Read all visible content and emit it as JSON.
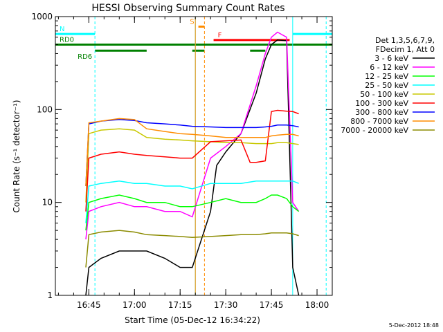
{
  "chart_data": {
    "type": "line",
    "title": "HESSI Observing Summary Count Rates",
    "xlabel": "Start Time (05-Dec-12 16:34:22)",
    "ylabel": "Count Rate (s⁻¹ detector⁻¹)",
    "yscale": "log",
    "xlim": [
      "16:34",
      "18:05"
    ],
    "ylim": [
      1,
      1000
    ],
    "xticks": [
      "16:45",
      "17:00",
      "17:15",
      "17:30",
      "17:45",
      "18:00"
    ],
    "yticks": [
      {
        "value": 1,
        "label": "1"
      },
      {
        "value": 10,
        "label": "10"
      },
      {
        "value": 100,
        "label": "100"
      },
      {
        "value": 1000,
        "label": "1000"
      }
    ],
    "legend_placement": "right",
    "legend_header": [
      "Det 1,3,5,6,7,9,",
      "FDecim 1, Att 0"
    ],
    "timestamp": "5-Dec-2012 18:48",
    "flags": [
      {
        "label": "N",
        "color": "#00ffff",
        "y": 650,
        "segments": [
          [
            "16:34",
            "16:47"
          ],
          [
            "17:52",
            "18:05"
          ]
        ]
      },
      {
        "label": "S",
        "color": "#ff8c00",
        "y": 780,
        "segments": [
          [
            "17:21",
            "17:23"
          ]
        ]
      },
      {
        "label": "F",
        "color": "#ff0000",
        "y": 560,
        "segments": [
          [
            "17:26",
            "17:51"
          ]
        ]
      },
      {
        "label": "RD0",
        "color": "#008000",
        "y": 500,
        "segments": [
          [
            "16:34",
            "18:05"
          ]
        ]
      },
      {
        "label": "RD6",
        "color": "#008000",
        "y": 430,
        "segments": [
          [
            "16:47",
            "17:04"
          ],
          [
            "17:19",
            "17:23"
          ],
          [
            "17:38",
            "17:43"
          ]
        ]
      }
    ],
    "vlines": [
      {
        "t": "16:34",
        "color": "#00ffff",
        "dash": false
      },
      {
        "t": "16:47",
        "color": "#00ffff",
        "dash": true
      },
      {
        "t": "17:20",
        "color": "#00ffff",
        "dash": false
      },
      {
        "t": "17:20",
        "color": "#ff8c00",
        "dash": false
      },
      {
        "t": "17:23",
        "color": "#ff8c00",
        "dash": true
      },
      {
        "t": "17:52",
        "color": "#00ffff",
        "dash": false
      },
      {
        "t": "18:03",
        "color": "#00ffff",
        "dash": true
      }
    ],
    "series": [
      {
        "name": "3 - 6 keV",
        "color": "#000000",
        "x": [
          "16:44",
          "16:45",
          "16:49",
          "16:55",
          "17:00",
          "17:04",
          "17:10",
          "17:15",
          "17:19",
          "17:25",
          "17:27",
          "17:30",
          "17:35",
          "17:40",
          "17:43",
          "17:45",
          "17:47",
          "17:50",
          "17:52",
          "17:54"
        ],
        "y": [
          1,
          2,
          2.5,
          3,
          3,
          3,
          2.5,
          2,
          2,
          8,
          25,
          35,
          55,
          150,
          350,
          500,
          560,
          550,
          2,
          1
        ]
      },
      {
        "name": "6 - 12 keV",
        "color": "#ff00ff",
        "x": [
          "16:44",
          "16:45",
          "16:49",
          "16:55",
          "17:00",
          "17:04",
          "17:10",
          "17:15",
          "17:19",
          "17:25",
          "17:30",
          "17:35",
          "17:40",
          "17:43",
          "17:45",
          "17:47",
          "17:50",
          "17:52",
          "17:54"
        ],
        "y": [
          4,
          8,
          9,
          10,
          9,
          9,
          8,
          8,
          7,
          30,
          40,
          55,
          180,
          400,
          600,
          680,
          600,
          10,
          8
        ]
      },
      {
        "name": "12 - 25 keV",
        "color": "#00ff00",
        "x": [
          "16:44",
          "16:45",
          "16:49",
          "16:55",
          "17:00",
          "17:04",
          "17:10",
          "17:15",
          "17:19",
          "17:25",
          "17:30",
          "17:35",
          "17:40",
          "17:43",
          "17:45",
          "17:47",
          "17:50",
          "17:52",
          "17:54"
        ],
        "y": [
          5,
          10,
          11,
          12,
          11,
          10,
          10,
          9,
          9,
          10,
          11,
          10,
          10,
          11,
          12,
          12,
          11,
          9,
          8
        ]
      },
      {
        "name": "25 - 50 keV",
        "color": "#00ffff",
        "x": [
          "16:44",
          "16:45",
          "16:49",
          "16:55",
          "17:00",
          "17:04",
          "17:10",
          "17:15",
          "17:19",
          "17:25",
          "17:30",
          "17:35",
          "17:40",
          "17:43",
          "17:45",
          "17:47",
          "17:50",
          "17:52",
          "17:54"
        ],
        "y": [
          6,
          15,
          16,
          17,
          16,
          16,
          15,
          15,
          14,
          16,
          16,
          16,
          17,
          17,
          17,
          17,
          17,
          17,
          16
        ]
      },
      {
        "name": "50 - 100 keV",
        "color": "#c8c800",
        "x": [
          "16:44",
          "16:45",
          "16:49",
          "16:55",
          "17:00",
          "17:04",
          "17:10",
          "17:15",
          "17:19",
          "17:25",
          "17:30",
          "17:35",
          "17:40",
          "17:43",
          "17:45",
          "17:47",
          "17:50",
          "17:52",
          "17:54"
        ],
        "y": [
          10,
          55,
          60,
          62,
          60,
          50,
          48,
          47,
          46,
          45,
          44,
          44,
          43,
          43,
          43,
          44,
          44,
          43,
          42
        ]
      },
      {
        "name": "100 - 300 keV",
        "color": "#ff0000",
        "x": [
          "16:44",
          "16:45",
          "16:49",
          "16:55",
          "17:00",
          "17:04",
          "17:10",
          "17:15",
          "17:19",
          "17:25",
          "17:30",
          "17:35",
          "17:38",
          "17:40",
          "17:43",
          "17:45",
          "17:47",
          "17:50",
          "17:52",
          "17:54"
        ],
        "y": [
          8,
          30,
          33,
          35,
          33,
          32,
          31,
          30,
          30,
          45,
          46,
          47,
          27,
          27,
          28,
          95,
          98,
          96,
          95,
          90
        ]
      },
      {
        "name": "300 - 800 keV",
        "color": "#0000ff",
        "x": [
          "16:44",
          "16:45",
          "16:49",
          "16:55",
          "17:00",
          "17:04",
          "17:10",
          "17:15",
          "17:19",
          "17:25",
          "17:30",
          "17:35",
          "17:40",
          "17:43",
          "17:45",
          "17:47",
          "17:50",
          "17:52",
          "17:54"
        ],
        "y": [
          15,
          70,
          75,
          78,
          76,
          72,
          70,
          68,
          66,
          65,
          64,
          64,
          64,
          65,
          66,
          68,
          68,
          67,
          65
        ]
      },
      {
        "name": "800 - 7000 keV",
        "color": "#ff8c00",
        "x": [
          "16:44",
          "16:45",
          "16:49",
          "16:55",
          "17:00",
          "17:04",
          "17:10",
          "17:15",
          "17:19",
          "17:25",
          "17:30",
          "17:35",
          "17:40",
          "17:43",
          "17:45",
          "17:47",
          "17:50",
          "17:52",
          "17:54"
        ],
        "y": [
          15,
          72,
          75,
          80,
          78,
          62,
          58,
          55,
          54,
          52,
          50,
          50,
          50,
          50,
          52,
          53,
          54,
          54,
          52
        ]
      },
      {
        "name": "7000 - 20000 keV",
        "color": "#8b8b00",
        "x": [
          "16:44",
          "16:45",
          "16:49",
          "16:55",
          "17:00",
          "17:04",
          "17:10",
          "17:15",
          "17:19",
          "17:25",
          "17:30",
          "17:35",
          "17:40",
          "17:43",
          "17:45",
          "17:47",
          "17:50",
          "17:52",
          "17:54"
        ],
        "y": [
          2,
          4.5,
          4.8,
          5,
          4.8,
          4.5,
          4.4,
          4.3,
          4.2,
          4.3,
          4.4,
          4.5,
          4.5,
          4.6,
          4.7,
          4.7,
          4.7,
          4.6,
          4.4
        ]
      }
    ]
  }
}
